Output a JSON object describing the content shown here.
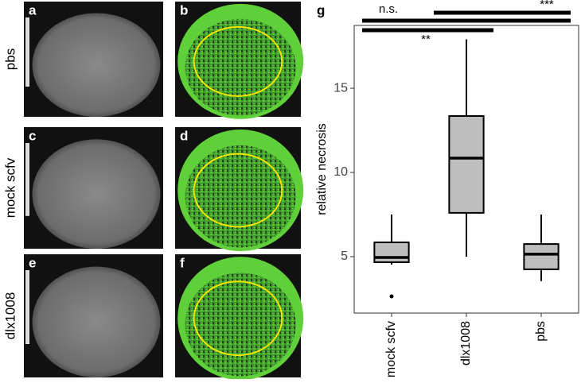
{
  "image_panels": {
    "letters": [
      "a",
      "b",
      "c",
      "d",
      "e",
      "f"
    ],
    "row_labels": [
      "pbs",
      "mock scfv",
      "dlx1008"
    ]
  },
  "chart_data": {
    "type": "box",
    "panel_label": "g",
    "y_label": "relative necrosis",
    "categories": [
      "mock scfv",
      "dlx1008",
      "pbs"
    ],
    "boxes": [
      {
        "whisker_low": 4.53,
        "q1": 4.67,
        "median": 4.95,
        "q3": 5.85,
        "whisker_high": 7.5,
        "outliers": [
          2.64
        ]
      },
      {
        "whisker_low": 5.0,
        "q1": 7.6,
        "median": 10.85,
        "q3": 13.35,
        "whisker_high": 17.9,
        "outliers": []
      },
      {
        "whisker_low": 3.55,
        "q1": 4.25,
        "median": 5.15,
        "q3": 5.75,
        "whisker_high": 7.5,
        "outliers": []
      }
    ],
    "color": "#bebebe",
    "ylim": [
      1.65,
      18.73
    ],
    "yticks": [
      5,
      10,
      15
    ],
    "annotations": [
      "n.s.",
      "***",
      "**"
    ]
  }
}
